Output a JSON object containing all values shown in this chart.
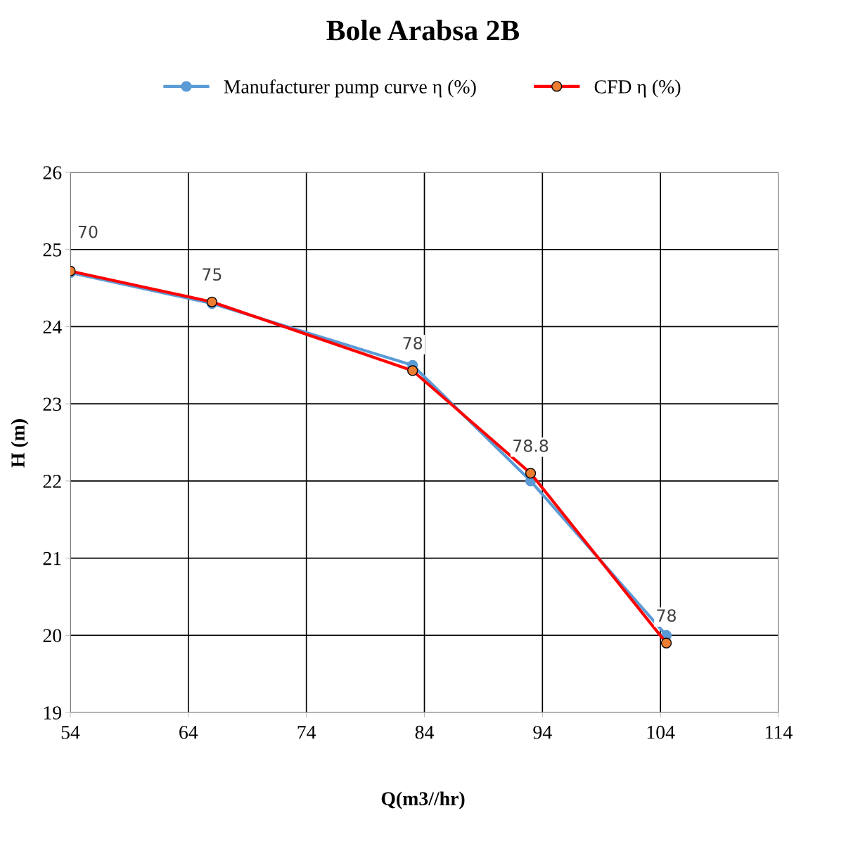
{
  "chart_data": {
    "type": "line",
    "title": "Bole Arabsa 2B",
    "xlabel": "Q(m3//hr)",
    "ylabel": "H (m)",
    "series": [
      {
        "name": "Manufacturer pump curve η (%)",
        "color": "#5b9bd5",
        "x": [
          54,
          66,
          83,
          93,
          104.5
        ],
        "values": [
          24.7,
          24.3,
          23.5,
          22.0,
          20.0
        ]
      },
      {
        "name": "CFD η (%)",
        "color": "#ff0000",
        "x": [
          54,
          66,
          83,
          93,
          104.5
        ],
        "values": [
          24.72,
          24.32,
          23.43,
          22.1,
          19.9
        ]
      }
    ],
    "annotations": [
      {
        "text": "70",
        "x": 54,
        "y": 24.72
      },
      {
        "text": "75",
        "x": 66,
        "y": 24.32
      },
      {
        "text": "78",
        "x": 83,
        "y": 23.43
      },
      {
        "text": "78.8",
        "x": 93,
        "y": 22.1
      },
      {
        "text": "78",
        "x": 104.5,
        "y": 19.9
      }
    ],
    "xlim": [
      54,
      114
    ],
    "xticks": [
      54,
      64,
      74,
      84,
      94,
      104,
      114
    ],
    "ylim": [
      19,
      26
    ],
    "yticks": [
      19,
      20,
      21,
      22,
      23,
      24,
      25,
      26
    ],
    "grid": true,
    "legend": "top",
    "marker": "circle",
    "line_style": "solid"
  }
}
